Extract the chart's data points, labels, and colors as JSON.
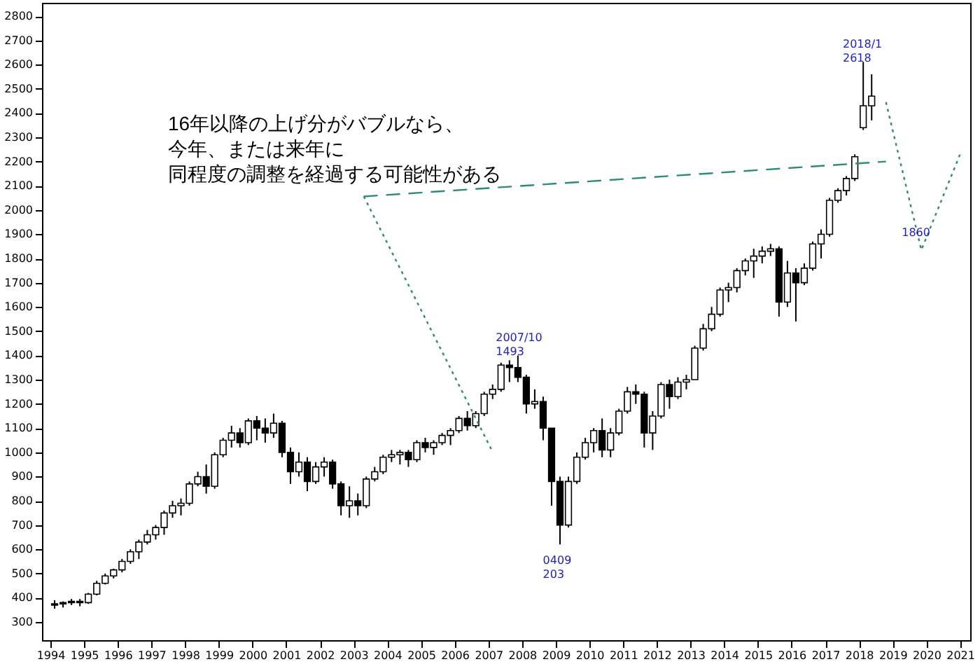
{
  "chart_data": {
    "type": "candlestick",
    "xlim": [
      1993.75,
      2021.3
    ],
    "xticks": [
      1994,
      1995,
      1996,
      1997,
      1998,
      1999,
      2000,
      2001,
      2002,
      2003,
      2004,
      2005,
      2006,
      2007,
      2008,
      2009,
      2010,
      2011,
      2012,
      2013,
      2014,
      2015,
      2016,
      2017,
      2018,
      2019,
      2020,
      2021
    ],
    "ylim": [
      225,
      2855
    ],
    "yticks": [
      300,
      400,
      500,
      600,
      700,
      800,
      900,
      1000,
      1100,
      1200,
      1300,
      1400,
      1500,
      1600,
      1700,
      1800,
      1900,
      2000,
      2100,
      2200,
      2300,
      2400,
      2500,
      2600,
      2700,
      2800
    ],
    "grid": false,
    "series": [
      {
        "type": "candlestick",
        "color": "#000000",
        "x": [
          1994.125,
          1994.375,
          1994.625,
          1994.875,
          1995.125,
          1995.375,
          1995.625,
          1995.875,
          1996.125,
          1996.375,
          1996.625,
          1996.875,
          1997.125,
          1997.375,
          1997.625,
          1997.875,
          1998.125,
          1998.375,
          1998.625,
          1998.875,
          1999.125,
          1999.375,
          1999.625,
          1999.875,
          2000.125,
          2000.375,
          2000.625,
          2000.875,
          2001.125,
          2001.375,
          2001.625,
          2001.875,
          2002.125,
          2002.375,
          2002.625,
          2002.875,
          2003.125,
          2003.375,
          2003.625,
          2003.875,
          2004.125,
          2004.375,
          2004.625,
          2004.875,
          2005.125,
          2005.375,
          2005.625,
          2005.875,
          2006.125,
          2006.375,
          2006.625,
          2006.875,
          2007.125,
          2007.375,
          2007.625,
          2007.875,
          2008.125,
          2008.375,
          2008.625,
          2008.875,
          2009.125,
          2009.375,
          2009.625,
          2009.875,
          2010.125,
          2010.375,
          2010.625,
          2010.875,
          2011.125,
          2011.375,
          2011.625,
          2011.875,
          2012.125,
          2012.375,
          2012.625,
          2012.875,
          2013.125,
          2013.375,
          2013.625,
          2013.875,
          2014.125,
          2014.375,
          2014.625,
          2014.875,
          2015.125,
          2015.375,
          2015.625,
          2015.875,
          2016.125,
          2016.375,
          2016.625,
          2016.875,
          2017.125,
          2017.375,
          2017.625,
          2017.875,
          2018.125,
          2018.375
        ],
        "ohlc": [
          [
            370,
            390,
            355,
            375
          ],
          [
            375,
            385,
            360,
            380
          ],
          [
            380,
            395,
            370,
            385
          ],
          [
            385,
            395,
            365,
            380
          ],
          [
            380,
            420,
            375,
            415
          ],
          [
            415,
            470,
            410,
            460
          ],
          [
            460,
            500,
            455,
            490
          ],
          [
            490,
            520,
            480,
            515
          ],
          [
            515,
            560,
            505,
            550
          ],
          [
            550,
            600,
            540,
            590
          ],
          [
            590,
            640,
            560,
            630
          ],
          [
            630,
            680,
            620,
            660
          ],
          [
            660,
            700,
            640,
            690
          ],
          [
            690,
            760,
            660,
            750
          ],
          [
            750,
            800,
            730,
            780
          ],
          [
            780,
            810,
            740,
            790
          ],
          [
            790,
            880,
            780,
            870
          ],
          [
            870,
            920,
            860,
            900
          ],
          [
            900,
            950,
            830,
            860
          ],
          [
            860,
            1000,
            850,
            990
          ],
          [
            990,
            1060,
            980,
            1050
          ],
          [
            1050,
            1110,
            1020,
            1080
          ],
          [
            1080,
            1100,
            1020,
            1040
          ],
          [
            1040,
            1140,
            1030,
            1130
          ],
          [
            1130,
            1150,
            1050,
            1100
          ],
          [
            1100,
            1140,
            1040,
            1080
          ],
          [
            1080,
            1160,
            1060,
            1120
          ],
          [
            1120,
            1130,
            980,
            1000
          ],
          [
            1000,
            1020,
            870,
            920
          ],
          [
            920,
            1000,
            900,
            960
          ],
          [
            960,
            980,
            840,
            880
          ],
          [
            880,
            960,
            870,
            940
          ],
          [
            940,
            980,
            900,
            960
          ],
          [
            960,
            970,
            850,
            870
          ],
          [
            870,
            880,
            740,
            780
          ],
          [
            780,
            860,
            730,
            800
          ],
          [
            800,
            830,
            740,
            780
          ],
          [
            780,
            900,
            770,
            890
          ],
          [
            890,
            940,
            880,
            920
          ],
          [
            920,
            990,
            910,
            980
          ],
          [
            980,
            1010,
            960,
            990
          ],
          [
            990,
            1010,
            950,
            1000
          ],
          [
            1000,
            1010,
            940,
            970
          ],
          [
            970,
            1050,
            960,
            1040
          ],
          [
            1040,
            1060,
            1000,
            1020
          ],
          [
            1020,
            1050,
            990,
            1040
          ],
          [
            1040,
            1080,
            1030,
            1070
          ],
          [
            1070,
            1100,
            1030,
            1090
          ],
          [
            1090,
            1150,
            1080,
            1140
          ],
          [
            1140,
            1170,
            1090,
            1110
          ],
          [
            1110,
            1170,
            1100,
            1160
          ],
          [
            1160,
            1250,
            1150,
            1240
          ],
          [
            1240,
            1280,
            1220,
            1260
          ],
          [
            1260,
            1370,
            1250,
            1360
          ],
          [
            1360,
            1380,
            1290,
            1350
          ],
          [
            1350,
            1400,
            1290,
            1310
          ],
          [
            1310,
            1320,
            1160,
            1200
          ],
          [
            1200,
            1260,
            1180,
            1210
          ],
          [
            1210,
            1230,
            1050,
            1100
          ],
          [
            1100,
            1100,
            780,
            880
          ],
          [
            880,
            900,
            620,
            700
          ],
          [
            700,
            900,
            690,
            880
          ],
          [
            880,
            1000,
            870,
            980
          ],
          [
            980,
            1060,
            970,
            1040
          ],
          [
            1040,
            1100,
            1000,
            1090
          ],
          [
            1090,
            1140,
            980,
            1010
          ],
          [
            1010,
            1100,
            980,
            1080
          ],
          [
            1080,
            1180,
            1070,
            1170
          ],
          [
            1170,
            1270,
            1160,
            1250
          ],
          [
            1250,
            1280,
            1200,
            1240
          ],
          [
            1240,
            1250,
            1020,
            1080
          ],
          [
            1080,
            1170,
            1010,
            1150
          ],
          [
            1150,
            1290,
            1140,
            1280
          ],
          [
            1280,
            1300,
            1180,
            1230
          ],
          [
            1230,
            1310,
            1220,
            1290
          ],
          [
            1290,
            1320,
            1260,
            1300
          ],
          [
            1300,
            1440,
            1300,
            1430
          ],
          [
            1430,
            1530,
            1420,
            1510
          ],
          [
            1510,
            1600,
            1500,
            1570
          ],
          [
            1570,
            1680,
            1560,
            1670
          ],
          [
            1670,
            1700,
            1620,
            1680
          ],
          [
            1680,
            1760,
            1660,
            1750
          ],
          [
            1750,
            1800,
            1730,
            1790
          ],
          [
            1790,
            1840,
            1720,
            1810
          ],
          [
            1810,
            1850,
            1780,
            1830
          ],
          [
            1830,
            1860,
            1810,
            1840
          ],
          [
            1840,
            1850,
            1560,
            1620
          ],
          [
            1620,
            1790,
            1600,
            1740
          ],
          [
            1740,
            1760,
            1540,
            1700
          ],
          [
            1700,
            1780,
            1690,
            1760
          ],
          [
            1760,
            1870,
            1750,
            1860
          ],
          [
            1860,
            1920,
            1800,
            1900
          ],
          [
            1900,
            2050,
            1890,
            2040
          ],
          [
            2040,
            2090,
            2030,
            2080
          ],
          [
            2080,
            2140,
            2060,
            2130
          ],
          [
            2130,
            2230,
            2120,
            2220
          ],
          [
            2340,
            2611,
            2330,
            2430
          ],
          [
            2430,
            2560,
            2370,
            2470
          ]
        ]
      },
      {
        "type": "line",
        "color": "#2e8b7a",
        "line_style": "dashed",
        "x": [
          2003.3,
          2018.8
        ],
        "values": [
          2056,
          2200
        ]
      },
      {
        "type": "line",
        "color": "#2e8b7a",
        "line_style": "dotted",
        "x": [
          2003.3,
          2007.1
        ],
        "values": [
          2056,
          1009
        ]
      },
      {
        "type": "line",
        "color": "#2e8b7a",
        "line_style": "dotted",
        "x": [
          2018.8,
          2019.85,
          2021.0
        ],
        "values": [
          2445,
          1835,
          2230
        ]
      }
    ],
    "annotations": [
      "16年以降の上げ分がバブルなら、",
      "今年、または来年に",
      "同程度の調整を経過する可能性がある",
      {
        "text": "2007/10\n1493",
        "x": 2007.8,
        "y": 1400
      },
      {
        "text": "0409\n203",
        "x": 2009.2,
        "y": 620
      },
      {
        "text": "2018/1\n2618",
        "x": 2018.1,
        "y": 2611
      },
      {
        "text": "1860",
        "x": 2019.85,
        "y": 1835
      }
    ]
  }
}
